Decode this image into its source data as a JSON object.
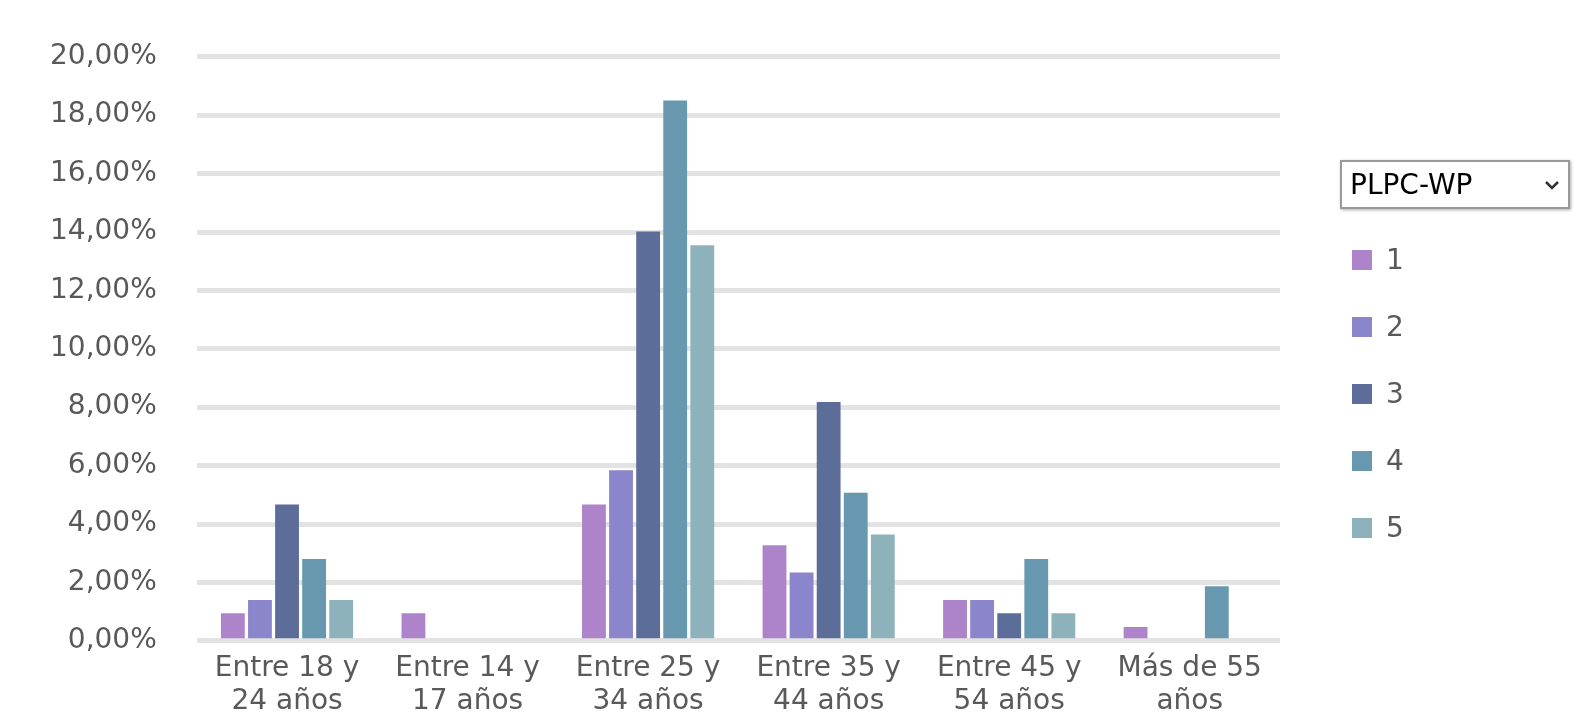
{
  "chart_data": {
    "type": "bar",
    "legend_title": "PLPC-WP",
    "legend": "right",
    "grid": "y",
    "categories": [
      "Entre 18 y 24 años",
      "Entre 14 y 17 años",
      "Entre 25 y 34 años",
      "Entre 35 y 44 años",
      "Entre 45 y 54 años",
      "Más de 55 años"
    ],
    "series": [
      {
        "name": "1",
        "color": "#ad84c9",
        "values": [
          0.94,
          0.94,
          4.67,
          3.27,
          1.4,
          0.47
        ]
      },
      {
        "name": "2",
        "color": "#8b86cc",
        "values": [
          1.4,
          null,
          5.84,
          2.34,
          1.4,
          null
        ]
      },
      {
        "name": "3",
        "color": "#5b6d98",
        "values": [
          4.67,
          null,
          14.02,
          8.18,
          0.94,
          null
        ]
      },
      {
        "name": "4",
        "color": "#6897b0",
        "values": [
          2.8,
          null,
          18.5,
          5.07,
          2.8,
          1.87
        ]
      },
      {
        "name": "5",
        "color": "#8eb2bc",
        "values": [
          1.4,
          null,
          13.55,
          3.64,
          0.94,
          null
        ]
      }
    ],
    "ylim": [
      0,
      20
    ],
    "yticks": [
      {
        "value": 0,
        "label": "0,00%"
      },
      {
        "value": 2,
        "label": "2,00%"
      },
      {
        "value": 4,
        "label": "4,00%"
      },
      {
        "value": 6,
        "label": "6,00%"
      },
      {
        "value": 8,
        "label": "8,00%"
      },
      {
        "value": 10,
        "label": "10,00%"
      },
      {
        "value": 12,
        "label": "12,00%"
      },
      {
        "value": 14,
        "label": "14,00%"
      },
      {
        "value": 16,
        "label": "16,00%"
      },
      {
        "value": 18,
        "label": "18,00%"
      },
      {
        "value": 20,
        "label": "20,00%"
      }
    ]
  }
}
